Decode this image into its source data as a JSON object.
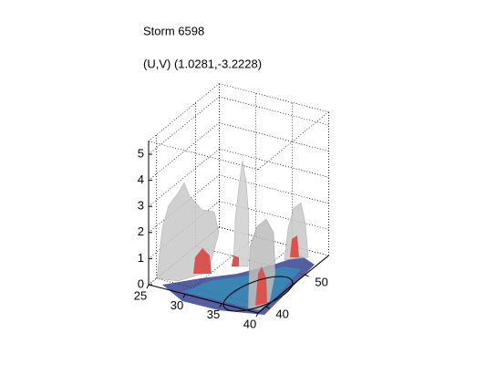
{
  "chart_data": {
    "type": "surface3d",
    "title": "Storm 6598",
    "subtitle": "(U,V) (1.0281,-3.2228)",
    "xlim": [
      25,
      40
    ],
    "xticks": [
      25,
      30,
      35,
      40
    ],
    "ylim": [
      38,
      56
    ],
    "yticks": [
      40,
      50
    ],
    "zlim": [
      0,
      5.5
    ],
    "zticks": [
      0,
      1,
      2,
      3,
      4,
      5
    ],
    "grid": true
  }
}
